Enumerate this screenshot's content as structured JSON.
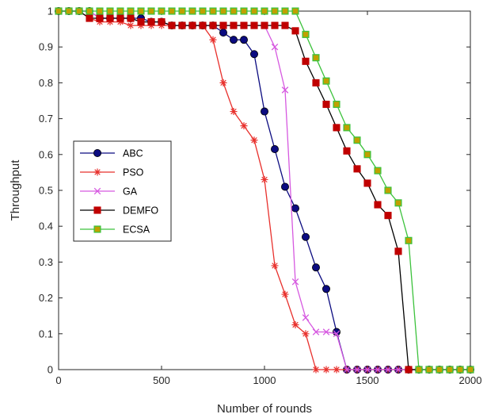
{
  "chart_data": {
    "type": "line",
    "title": "",
    "xlabel": "Number of rounds",
    "ylabel": "Throughput",
    "xlim": [
      0,
      2000
    ],
    "ylim": [
      0,
      1
    ],
    "xticks": [
      0,
      500,
      1000,
      1500,
      2000
    ],
    "yticks": [
      0,
      0.1,
      0.2,
      0.3,
      0.4,
      0.5,
      0.6,
      0.7,
      0.8,
      0.9,
      1
    ],
    "grid": false,
    "legend_position": "middle-left",
    "series": [
      {
        "name": "ABC",
        "color": "#0b0b80",
        "marker": "circle",
        "x": [
          0,
          50,
          100,
          150,
          200,
          250,
          300,
          350,
          400,
          450,
          500,
          550,
          600,
          650,
          700,
          750,
          800,
          850,
          900,
          950,
          1000,
          1050,
          1100,
          1150,
          1200,
          1250,
          1300,
          1350,
          1400,
          1450,
          1500,
          1550,
          1600,
          1650,
          1700,
          1750,
          1800,
          1850,
          1900,
          1950,
          2000
        ],
        "y": [
          1,
          1,
          1,
          1,
          0.98,
          0.98,
          0.98,
          0.98,
          0.98,
          0.97,
          0.97,
          0.96,
          0.96,
          0.96,
          0.96,
          0.96,
          0.94,
          0.92,
          0.92,
          0.88,
          0.72,
          0.615,
          0.51,
          0.45,
          0.37,
          0.285,
          0.225,
          0.105,
          0,
          0,
          0,
          0,
          0,
          0,
          0,
          0,
          0,
          0,
          0,
          0,
          0
        ]
      },
      {
        "name": "PSO",
        "color": "#e8302c",
        "marker": "asterisk",
        "x": [
          0,
          50,
          100,
          150,
          200,
          250,
          300,
          350,
          400,
          450,
          500,
          550,
          600,
          650,
          700,
          750,
          800,
          850,
          900,
          950,
          1000,
          1050,
          1100,
          1150,
          1200,
          1250,
          1300,
          1350,
          1400,
          1450,
          1500,
          1550,
          1600,
          1650,
          1700,
          1750,
          1800,
          1850,
          1900,
          1950,
          2000
        ],
        "y": [
          1,
          1,
          1,
          0.98,
          0.97,
          0.97,
          0.97,
          0.96,
          0.96,
          0.96,
          0.96,
          0.96,
          0.96,
          0.96,
          0.96,
          0.92,
          0.8,
          0.72,
          0.68,
          0.64,
          0.53,
          0.29,
          0.21,
          0.125,
          0.1,
          0,
          0,
          0,
          0,
          0,
          0,
          0,
          0,
          0,
          0,
          0,
          0,
          0,
          0,
          0,
          0
        ]
      },
      {
        "name": "GA",
        "color": "#d659e0",
        "marker": "x",
        "x": [
          0,
          50,
          100,
          150,
          200,
          250,
          300,
          350,
          400,
          450,
          500,
          550,
          600,
          650,
          700,
          750,
          800,
          850,
          900,
          950,
          1000,
          1050,
          1100,
          1150,
          1200,
          1250,
          1300,
          1350,
          1400,
          1450,
          1500,
          1550,
          1600,
          1650,
          1700,
          1750,
          1800,
          1850,
          1900,
          1950,
          2000
        ],
        "y": [
          1,
          1,
          1,
          1,
          0.98,
          0.98,
          0.98,
          0.98,
          0.97,
          0.97,
          0.97,
          0.96,
          0.96,
          0.96,
          0.96,
          0.96,
          0.96,
          0.96,
          0.96,
          0.96,
          0.96,
          0.9,
          0.78,
          0.245,
          0.145,
          0.105,
          0.105,
          0.1,
          0,
          0,
          0,
          0,
          0,
          0,
          0,
          0,
          0,
          0,
          0,
          0,
          0
        ]
      },
      {
        "name": "DEMFO",
        "color": "#c00000",
        "line_color": "#000000",
        "marker": "square",
        "x": [
          0,
          50,
          100,
          150,
          200,
          250,
          300,
          350,
          400,
          450,
          500,
          550,
          600,
          650,
          700,
          750,
          800,
          850,
          900,
          950,
          1000,
          1050,
          1100,
          1150,
          1200,
          1250,
          1300,
          1350,
          1400,
          1450,
          1500,
          1550,
          1600,
          1650,
          1700,
          1750,
          1800,
          1850,
          1900,
          1950,
          2000
        ],
        "y": [
          1,
          1,
          1,
          0.98,
          0.98,
          0.98,
          0.98,
          0.98,
          0.97,
          0.97,
          0.97,
          0.96,
          0.96,
          0.96,
          0.96,
          0.96,
          0.96,
          0.96,
          0.96,
          0.96,
          0.96,
          0.96,
          0.96,
          0.945,
          0.86,
          0.8,
          0.74,
          0.675,
          0.61,
          0.56,
          0.52,
          0.46,
          0.43,
          0.33,
          0,
          0,
          0,
          0,
          0,
          0,
          0
        ]
      },
      {
        "name": "ECSA",
        "color": "#3cc23c",
        "fill": "#c0a000",
        "marker": "square",
        "x": [
          0,
          50,
          100,
          150,
          200,
          250,
          300,
          350,
          400,
          450,
          500,
          550,
          600,
          650,
          700,
          750,
          800,
          850,
          900,
          950,
          1000,
          1050,
          1100,
          1150,
          1200,
          1250,
          1300,
          1350,
          1400,
          1450,
          1500,
          1550,
          1600,
          1650,
          1700,
          1750,
          1800,
          1850,
          1900,
          1950,
          2000
        ],
        "y": [
          1,
          1,
          1,
          1,
          1,
          1,
          1,
          1,
          1,
          1,
          1,
          1,
          1,
          1,
          1,
          1,
          1,
          1,
          1,
          1,
          1,
          1,
          1,
          1,
          0.935,
          0.87,
          0.805,
          0.74,
          0.675,
          0.64,
          0.6,
          0.555,
          0.5,
          0.465,
          0.36,
          0,
          0,
          0,
          0,
          0,
          0
        ]
      }
    ]
  }
}
